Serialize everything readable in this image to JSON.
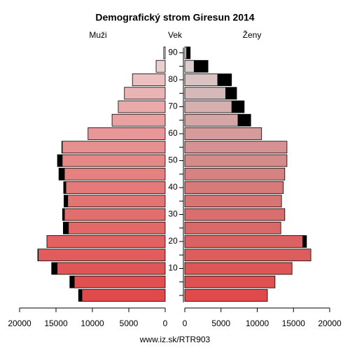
{
  "chart_data": {
    "type": "pyramid",
    "title": "Demografický strom Giresun 2014",
    "left_label": "Muži",
    "center_label": "Vek",
    "right_label": "Ženy",
    "footer": "www.iz.sk/RTR903",
    "categories": [
      null,
      null,
      "10",
      null,
      "20",
      null,
      "30",
      null,
      "40",
      null,
      "50",
      null,
      "60",
      null,
      "70",
      null,
      "80",
      null,
      "90"
    ],
    "series": [
      {
        "name": "Muži",
        "side": "left",
        "values": [
          11900,
          13100,
          15600,
          17500,
          16250,
          14000,
          14100,
          13900,
          13950,
          14600,
          14800,
          14200,
          10600,
          7300,
          6450,
          5600,
          4500,
          1250,
          200
        ],
        "colors": [
          "#e04a4a",
          "#e05050",
          "#e05656",
          "#e15c5c",
          "#e26262",
          "#e36868",
          "#e36e6e",
          "#e47474",
          "#e57a7a",
          "#e68181",
          "#e68888",
          "#e79090",
          "#e89898",
          "#e9a1a1",
          "#eaaaaa",
          "#ebb4b4",
          "#ecc0c0",
          "#edcece",
          "#eedddd"
        ]
      },
      {
        "name": "Ženy",
        "side": "right",
        "values": [
          11400,
          12450,
          14800,
          17400,
          16800,
          13250,
          13800,
          13350,
          13600,
          13800,
          14100,
          14100,
          10600,
          9100,
          8200,
          7150,
          6450,
          3200,
          750
        ],
        "colors": [
          "#e04a4a",
          "#df5050",
          "#de5656",
          "#dd5c5c",
          "#dc6262",
          "#db6868",
          "#da6e6e",
          "#d97474",
          "#d87a7a",
          "#d78282",
          "#d78a8a",
          "#d69292",
          "#d69c9c",
          "#d6a5a5",
          "#d6afaf",
          "#d6b8b8",
          "#d8c2c2",
          "#dccece",
          "#e0dada"
        ]
      }
    ],
    "excess_color": "#000000",
    "xlim": [
      0,
      20000
    ],
    "xticks": [
      0,
      5000,
      10000,
      15000,
      20000
    ]
  }
}
